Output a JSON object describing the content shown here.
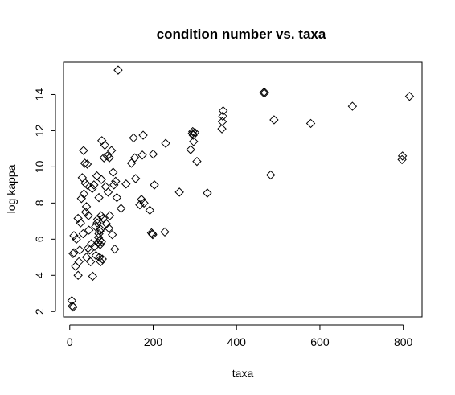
{
  "chart_data": {
    "type": "scatter",
    "title": "condition number vs. taxa",
    "xlabel": "taxa",
    "ylabel": "log kappa",
    "xlim": [
      -15,
      845
    ],
    "ylim": [
      1.7,
      15.8
    ],
    "xticks": [
      0,
      200,
      400,
      600,
      800
    ],
    "yticks": [
      2,
      4,
      6,
      8,
      10,
      12,
      14
    ],
    "marker": "diamond",
    "points": [
      {
        "x": 5,
        "y": 2.6
      },
      {
        "x": 6,
        "y": 2.3
      },
      {
        "x": 8,
        "y": 2.25
      },
      {
        "x": 8,
        "y": 5.2
      },
      {
        "x": 10,
        "y": 5.25
      },
      {
        "x": 10,
        "y": 6.2
      },
      {
        "x": 14,
        "y": 4.5
      },
      {
        "x": 16,
        "y": 6.0
      },
      {
        "x": 20,
        "y": 4.0
      },
      {
        "x": 20,
        "y": 7.15
      },
      {
        "x": 22,
        "y": 4.75
      },
      {
        "x": 24,
        "y": 5.4
      },
      {
        "x": 26,
        "y": 6.9
      },
      {
        "x": 28,
        "y": 8.25
      },
      {
        "x": 30,
        "y": 9.4
      },
      {
        "x": 32,
        "y": 6.3
      },
      {
        "x": 33,
        "y": 10.9
      },
      {
        "x": 34,
        "y": 8.5
      },
      {
        "x": 36,
        "y": 10.2
      },
      {
        "x": 37,
        "y": 9.1
      },
      {
        "x": 38,
        "y": 7.5
      },
      {
        "x": 40,
        "y": 5.0
      },
      {
        "x": 40,
        "y": 7.8
      },
      {
        "x": 42,
        "y": 10.15
      },
      {
        "x": 42,
        "y": 9.0
      },
      {
        "x": 44,
        "y": 5.5
      },
      {
        "x": 45,
        "y": 7.3
      },
      {
        "x": 46,
        "y": 6.5
      },
      {
        "x": 48,
        "y": 5.4
      },
      {
        "x": 50,
        "y": 4.75
      },
      {
        "x": 52,
        "y": 5.75
      },
      {
        "x": 54,
        "y": 8.8
      },
      {
        "x": 55,
        "y": 3.95
      },
      {
        "x": 58,
        "y": 9.0
      },
      {
        "x": 60,
        "y": 5.6
      },
      {
        "x": 62,
        "y": 6.7
      },
      {
        "x": 63,
        "y": 5.1
      },
      {
        "x": 65,
        "y": 9.5
      },
      {
        "x": 66,
        "y": 6.9
      },
      {
        "x": 67,
        "y": 7.1
      },
      {
        "x": 68,
        "y": 5.8
      },
      {
        "x": 69,
        "y": 6.1
      },
      {
        "x": 70,
        "y": 6.3
      },
      {
        "x": 70,
        "y": 8.3
      },
      {
        "x": 71,
        "y": 5.0
      },
      {
        "x": 72,
        "y": 6.45
      },
      {
        "x": 72,
        "y": 5.95
      },
      {
        "x": 73,
        "y": 5.7
      },
      {
        "x": 74,
        "y": 4.75
      },
      {
        "x": 74,
        "y": 6.55
      },
      {
        "x": 75,
        "y": 7.3
      },
      {
        "x": 76,
        "y": 5.85
      },
      {
        "x": 76,
        "y": 9.3
      },
      {
        "x": 77,
        "y": 11.45
      },
      {
        "x": 78,
        "y": 4.9
      },
      {
        "x": 80,
        "y": 7.15
      },
      {
        "x": 82,
        "y": 10.5
      },
      {
        "x": 84,
        "y": 11.2
      },
      {
        "x": 86,
        "y": 8.9
      },
      {
        "x": 88,
        "y": 6.85
      },
      {
        "x": 90,
        "y": 10.6
      },
      {
        "x": 92,
        "y": 8.6
      },
      {
        "x": 94,
        "y": 6.6
      },
      {
        "x": 95,
        "y": 10.5
      },
      {
        "x": 96,
        "y": 7.3
      },
      {
        "x": 100,
        "y": 10.9
      },
      {
        "x": 102,
        "y": 6.25
      },
      {
        "x": 104,
        "y": 9.7
      },
      {
        "x": 106,
        "y": 9.0
      },
      {
        "x": 108,
        "y": 5.45
      },
      {
        "x": 110,
        "y": 9.2
      },
      {
        "x": 113,
        "y": 8.3
      },
      {
        "x": 116,
        "y": 15.35
      },
      {
        "x": 123,
        "y": 7.7
      },
      {
        "x": 135,
        "y": 9.05
      },
      {
        "x": 148,
        "y": 10.2
      },
      {
        "x": 153,
        "y": 11.6
      },
      {
        "x": 156,
        "y": 10.5
      },
      {
        "x": 158,
        "y": 9.35
      },
      {
        "x": 168,
        "y": 7.9
      },
      {
        "x": 172,
        "y": 8.2
      },
      {
        "x": 174,
        "y": 10.65
      },
      {
        "x": 176,
        "y": 11.75
      },
      {
        "x": 178,
        "y": 8.0
      },
      {
        "x": 192,
        "y": 7.6
      },
      {
        "x": 196,
        "y": 6.35
      },
      {
        "x": 198,
        "y": 6.3
      },
      {
        "x": 199,
        "y": 6.25
      },
      {
        "x": 200,
        "y": 10.7
      },
      {
        "x": 203,
        "y": 9.0
      },
      {
        "x": 228,
        "y": 6.4
      },
      {
        "x": 230,
        "y": 11.3
      },
      {
        "x": 263,
        "y": 8.6
      },
      {
        "x": 290,
        "y": 10.95
      },
      {
        "x": 294,
        "y": 11.85
      },
      {
        "x": 295,
        "y": 11.95
      },
      {
        "x": 296,
        "y": 11.75
      },
      {
        "x": 297,
        "y": 11.4
      },
      {
        "x": 300,
        "y": 11.9
      },
      {
        "x": 305,
        "y": 10.3
      },
      {
        "x": 330,
        "y": 8.55
      },
      {
        "x": 365,
        "y": 12.1
      },
      {
        "x": 366,
        "y": 12.5
      },
      {
        "x": 367,
        "y": 12.8
      },
      {
        "x": 368,
        "y": 13.1
      },
      {
        "x": 465,
        "y": 14.1
      },
      {
        "x": 468,
        "y": 14.1
      },
      {
        "x": 482,
        "y": 9.55
      },
      {
        "x": 490,
        "y": 12.6
      },
      {
        "x": 578,
        "y": 12.4
      },
      {
        "x": 678,
        "y": 13.35
      },
      {
        "x": 797,
        "y": 10.4
      },
      {
        "x": 798,
        "y": 10.6
      },
      {
        "x": 815,
        "y": 13.9
      }
    ]
  }
}
